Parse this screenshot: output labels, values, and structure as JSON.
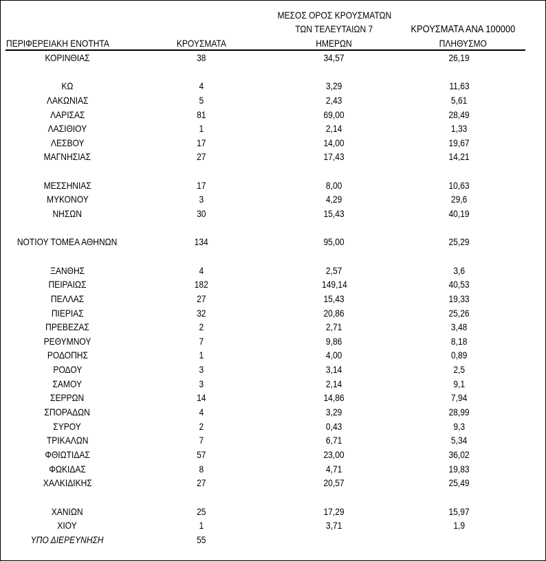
{
  "headers": {
    "region": "ΠΕΡΙΦΕΡΕΙΑΚΗ ΕΝΟΤΗΤΑ",
    "cases": "ΚΡΟΥΣΜΑΤΑ",
    "avg_line1": "ΜΕΣΟΣ ΟΡΟΣ ΚΡΟΥΣΜΑΤΩΝ",
    "avg_line2": "ΤΩΝ ΤΕΛΕΥΤΑΙΩΝ 7",
    "avg_line3": "ΗΜΕΡΩΝ",
    "per100k_line1": "ΚΡΟΥΣΜΑΤΑ ΑΝΑ 100000",
    "per100k_line2": "ΠΛΗΘΥΣΜΟ"
  },
  "rows": [
    {
      "region": "ΚΟΡΙΝΘΙΑΣ",
      "cases": "38",
      "avg7": "34,57",
      "per100k": "26,19"
    },
    null,
    {
      "region": "ΚΩ",
      "cases": "4",
      "avg7": "3,29",
      "per100k": "11,63"
    },
    {
      "region": "ΛΑΚΩΝΙΑΣ",
      "cases": "5",
      "avg7": "2,43",
      "per100k": "5,61"
    },
    {
      "region": "ΛΑΡΙΣΑΣ",
      "cases": "81",
      "avg7": "69,00",
      "per100k": "28,49"
    },
    {
      "region": "ΛΑΣΙΘΙΟΥ",
      "cases": "1",
      "avg7": "2,14",
      "per100k": "1,33"
    },
    {
      "region": "ΛΕΣΒΟΥ",
      "cases": "17",
      "avg7": "14,00",
      "per100k": "19,67"
    },
    {
      "region": "ΜΑΓΝΗΣΙΑΣ",
      "cases": "27",
      "avg7": "17,43",
      "per100k": "14,21"
    },
    null,
    {
      "region": "ΜΕΣΣΗΝΙΑΣ",
      "cases": "17",
      "avg7": "8,00",
      "per100k": "10,63"
    },
    {
      "region": "ΜΥΚΟΝΟΥ",
      "cases": "3",
      "avg7": "4,29",
      "per100k": "29,6"
    },
    {
      "region": "ΝΗΣΩΝ",
      "cases": "30",
      "avg7": "15,43",
      "per100k": "40,19"
    },
    null,
    {
      "region": "ΝΟΤΙΟΥ ΤΟΜΕΑ ΑΘΗΝΩΝ",
      "cases": "134",
      "avg7": "95,00",
      "per100k": "25,29"
    },
    null,
    {
      "region": "ΞΑΝΘΗΣ",
      "cases": "4",
      "avg7": "2,57",
      "per100k": "3,6"
    },
    {
      "region": "ΠΕΙΡΑΙΩΣ",
      "cases": "182",
      "avg7": "149,14",
      "per100k": "40,53"
    },
    {
      "region": "ΠΕΛΛΑΣ",
      "cases": "27",
      "avg7": "15,43",
      "per100k": "19,33"
    },
    {
      "region": "ΠΙΕΡΙΑΣ",
      "cases": "32",
      "avg7": "20,86",
      "per100k": "25,26"
    },
    {
      "region": "ΠΡΕΒΕΖΑΣ",
      "cases": "2",
      "avg7": "2,71",
      "per100k": "3,48"
    },
    {
      "region": "ΡΕΘΥΜΝΟΥ",
      "cases": "7",
      "avg7": "9,86",
      "per100k": "8,18"
    },
    {
      "region": "ΡΟΔΟΠΗΣ",
      "cases": "1",
      "avg7": "4,00",
      "per100k": "0,89"
    },
    {
      "region": "ΡΟΔΟΥ",
      "cases": "3",
      "avg7": "3,14",
      "per100k": "2,5"
    },
    {
      "region": "ΣΑΜΟΥ",
      "cases": "3",
      "avg7": "2,14",
      "per100k": "9,1"
    },
    {
      "region": "ΣΕΡΡΩΝ",
      "cases": "14",
      "avg7": "14,86",
      "per100k": "7,94"
    },
    {
      "region": "ΣΠΟΡΑΔΩΝ",
      "cases": "4",
      "avg7": "3,29",
      "per100k": "28,99"
    },
    {
      "region": "ΣΥΡΟΥ",
      "cases": "2",
      "avg7": "0,43",
      "per100k": "9,3"
    },
    {
      "region": "ΤΡΙΚΑΛΩΝ",
      "cases": "7",
      "avg7": "6,71",
      "per100k": "5,34"
    },
    {
      "region": "ΦΘΙΩΤΙΔΑΣ",
      "cases": "57",
      "avg7": "23,00",
      "per100k": "36,02"
    },
    {
      "region": "ΦΩΚΙΔΑΣ",
      "cases": "8",
      "avg7": "4,71",
      "per100k": "19,83"
    },
    {
      "region": "ΧΑΛΚΙΔΙΚΗΣ",
      "cases": "27",
      "avg7": "20,57",
      "per100k": "25,49"
    },
    null,
    {
      "region": "ΧΑΝΙΩΝ",
      "cases": "25",
      "avg7": "17,29",
      "per100k": "15,97"
    },
    {
      "region": "ΧΙΟΥ",
      "cases": "1",
      "avg7": "3,71",
      "per100k": "1,9"
    },
    {
      "region": "ΥΠΟ ΔΙΕΡΕΥΝΗΣΗ",
      "cases": "55",
      "avg7": "",
      "per100k": "",
      "italic": true
    }
  ]
}
